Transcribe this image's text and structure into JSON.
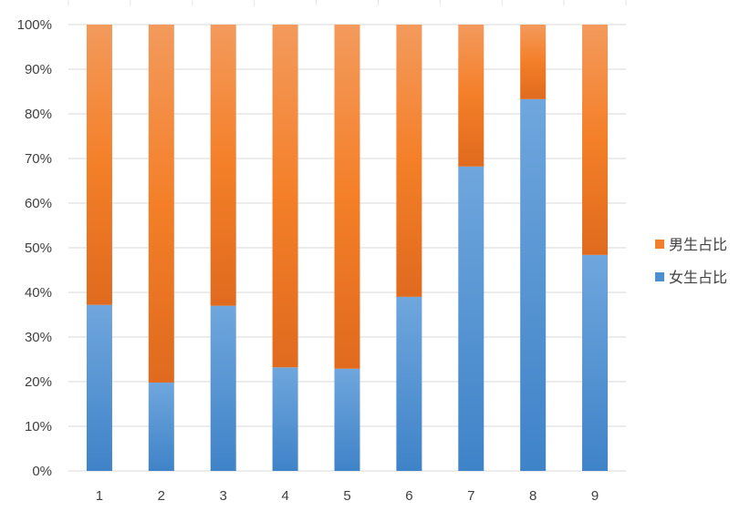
{
  "chart_data": {
    "type": "bar",
    "stacked": "percent",
    "categories": [
      "1",
      "2",
      "3",
      "4",
      "5",
      "6",
      "7",
      "8",
      "9"
    ],
    "series": [
      {
        "name": "女生占比",
        "color": "#4e8fd0",
        "values": [
          37.2,
          19.8,
          37.0,
          23.2,
          22.9,
          39.0,
          68.2,
          83.3,
          48.4
        ]
      },
      {
        "name": "男生占比",
        "color": "#f07f2e",
        "values": [
          62.8,
          80.2,
          63.0,
          76.8,
          77.1,
          61.0,
          31.8,
          16.7,
          51.6
        ]
      }
    ],
    "y_ticks": [
      "0%",
      "10%",
      "20%",
      "30%",
      "40%",
      "50%",
      "60%",
      "70%",
      "80%",
      "90%",
      "100%"
    ],
    "ylim": [
      0,
      100
    ],
    "title": "",
    "xlabel": "",
    "ylabel": "",
    "grid": true,
    "legend": {
      "position": "right",
      "order": [
        "男生占比",
        "女生占比"
      ]
    }
  }
}
